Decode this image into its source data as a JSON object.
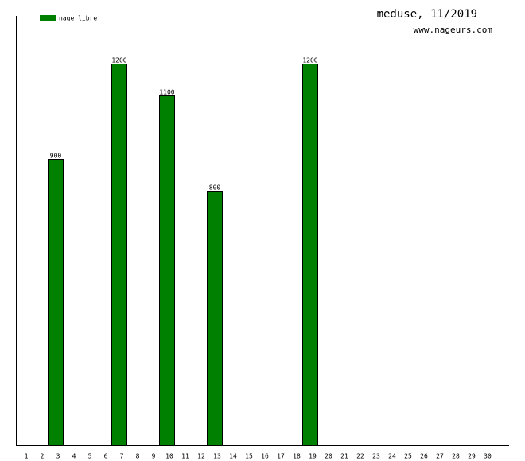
{
  "chart_data": {
    "type": "bar",
    "title": "meduse, 11/2019",
    "subtitle": "www.nageurs.com",
    "categories": [
      "1",
      "2",
      "3",
      "4",
      "5",
      "6",
      "7",
      "8",
      "9",
      "10",
      "11",
      "12",
      "13",
      "14",
      "15",
      "16",
      "17",
      "18",
      "19",
      "20",
      "21",
      "22",
      "23",
      "24",
      "25",
      "26",
      "27",
      "28",
      "29",
      "30"
    ],
    "series": [
      {
        "name": "nage libre",
        "color": "#008000",
        "values": [
          null,
          null,
          900,
          null,
          null,
          null,
          1200,
          null,
          null,
          1100,
          null,
          null,
          800,
          null,
          null,
          null,
          null,
          null,
          1200,
          null,
          null,
          null,
          null,
          null,
          null,
          null,
          null,
          null,
          null,
          null
        ]
      }
    ]
  }
}
